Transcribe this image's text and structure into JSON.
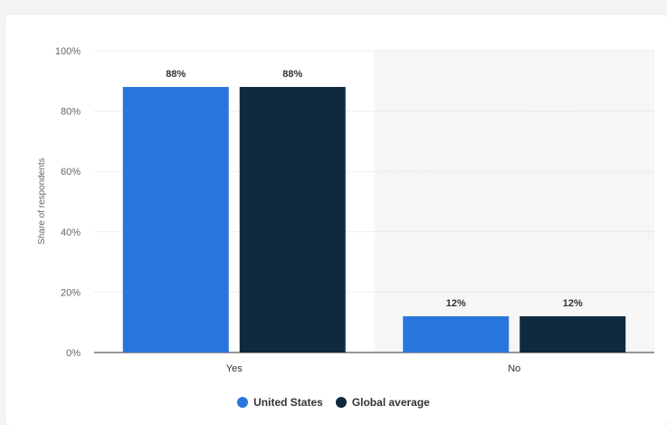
{
  "chart_data": {
    "type": "bar",
    "categories": [
      "Yes",
      "No"
    ],
    "series": [
      {
        "name": "United States",
        "values": [
          88,
          12
        ],
        "color": "#2876dd"
      },
      {
        "name": "Global average",
        "values": [
          88,
          12
        ],
        "color": "#0f2a3f"
      }
    ],
    "data_labels": [
      [
        "88%",
        "12%"
      ],
      [
        "88%",
        "12%"
      ]
    ],
    "ylabel": "Share of respondents",
    "xlabel": "",
    "ylim": [
      0,
      100
    ],
    "yticks": [
      "0%",
      "20%",
      "40%",
      "60%",
      "80%",
      "100%"
    ],
    "ytick_values": [
      0,
      20,
      40,
      60,
      80,
      100
    ],
    "grid": true,
    "legend_position": "bottom",
    "highlight_category": "No",
    "highlight_color": "#f6f6f6"
  }
}
